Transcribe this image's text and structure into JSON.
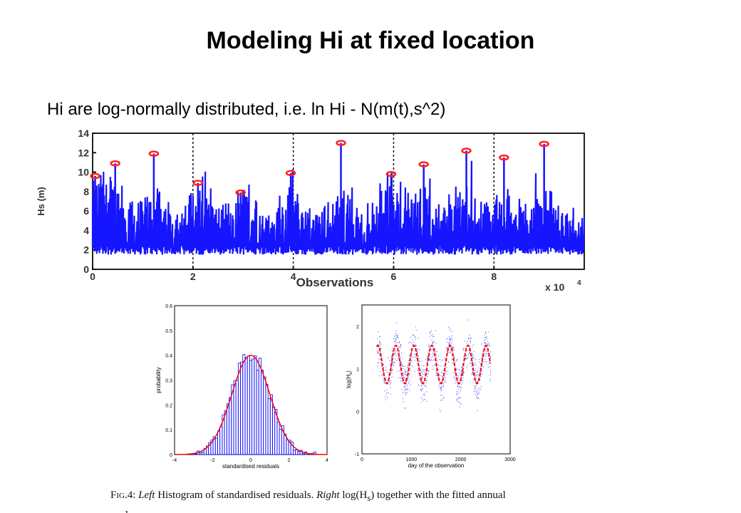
{
  "slide": {
    "title": "Modeling  Hi at fixed location",
    "subtitle": "Hi are log-normally distributed, i.e. ln Hi  -  N(m(t),s^2)"
  },
  "caption": {
    "fig_label": "Fig.4:",
    "left_word": "Left",
    "left_text": " Histogram of standardised residuals. ",
    "right_word": "Right",
    "right_text": " log(H",
    "right_sub": "s",
    "right_text2": ") together with the fitted annual",
    "second_line": "cycle"
  },
  "chart_data": [
    {
      "type": "line",
      "ylabel": "Hs (m)",
      "xlabel": "Observations",
      "x_multiplier": "x 10",
      "x_multiplier_exp": "4",
      "xlim": [
        0,
        9.8
      ],
      "ylim": [
        0,
        14
      ],
      "xticks": [
        0,
        2,
        4,
        6,
        8
      ],
      "yticks": [
        0,
        2,
        4,
        6,
        8,
        10,
        12,
        14
      ],
      "series_color": "#1515ff",
      "marker_color": "#ff2020",
      "grid": "vertical dashed lines at x ticks",
      "peaks": [
        {
          "x": 0.05,
          "y": 9.6
        },
        {
          "x": 0.45,
          "y": 10.9
        },
        {
          "x": 1.22,
          "y": 11.9
        },
        {
          "x": 2.1,
          "y": 8.9
        },
        {
          "x": 2.95,
          "y": 7.9
        },
        {
          "x": 3.95,
          "y": 9.9
        },
        {
          "x": 4.95,
          "y": 13.0
        },
        {
          "x": 5.95,
          "y": 9.8
        },
        {
          "x": 6.6,
          "y": 10.8
        },
        {
          "x": 7.45,
          "y": 12.2
        },
        {
          "x": 8.2,
          "y": 11.5
        },
        {
          "x": 9.0,
          "y": 12.9
        }
      ]
    },
    {
      "type": "bar",
      "ylabel": "probability",
      "xlabel": "standardised residuals",
      "xlim": [
        -4,
        4
      ],
      "ylim": [
        0,
        0.6
      ],
      "xticks": [
        -4,
        -2,
        0,
        2,
        4
      ],
      "yticks": [
        0,
        0.1,
        0.2,
        0.3,
        0.4,
        0.5,
        0.6
      ],
      "bar_color": "#0000ff",
      "fit_color": "#ff0000",
      "fit": "normal density"
    },
    {
      "type": "scatter",
      "ylabel": "log(H",
      "ylabel_sub": "s",
      "ylabel_end": ")",
      "xlabel": "day of the observation",
      "xlim": [
        0,
        3000
      ],
      "ylim": [
        -1,
        2.5
      ],
      "xticks": [
        0,
        1000,
        2000,
        3000
      ],
      "yticks": [
        -1,
        0,
        1,
        2
      ],
      "point_color": "#3344ff",
      "fit_color": "#ff0000",
      "fit": "annual cycle: mean 1.1, amplitude 0.45, period 365 days"
    }
  ]
}
